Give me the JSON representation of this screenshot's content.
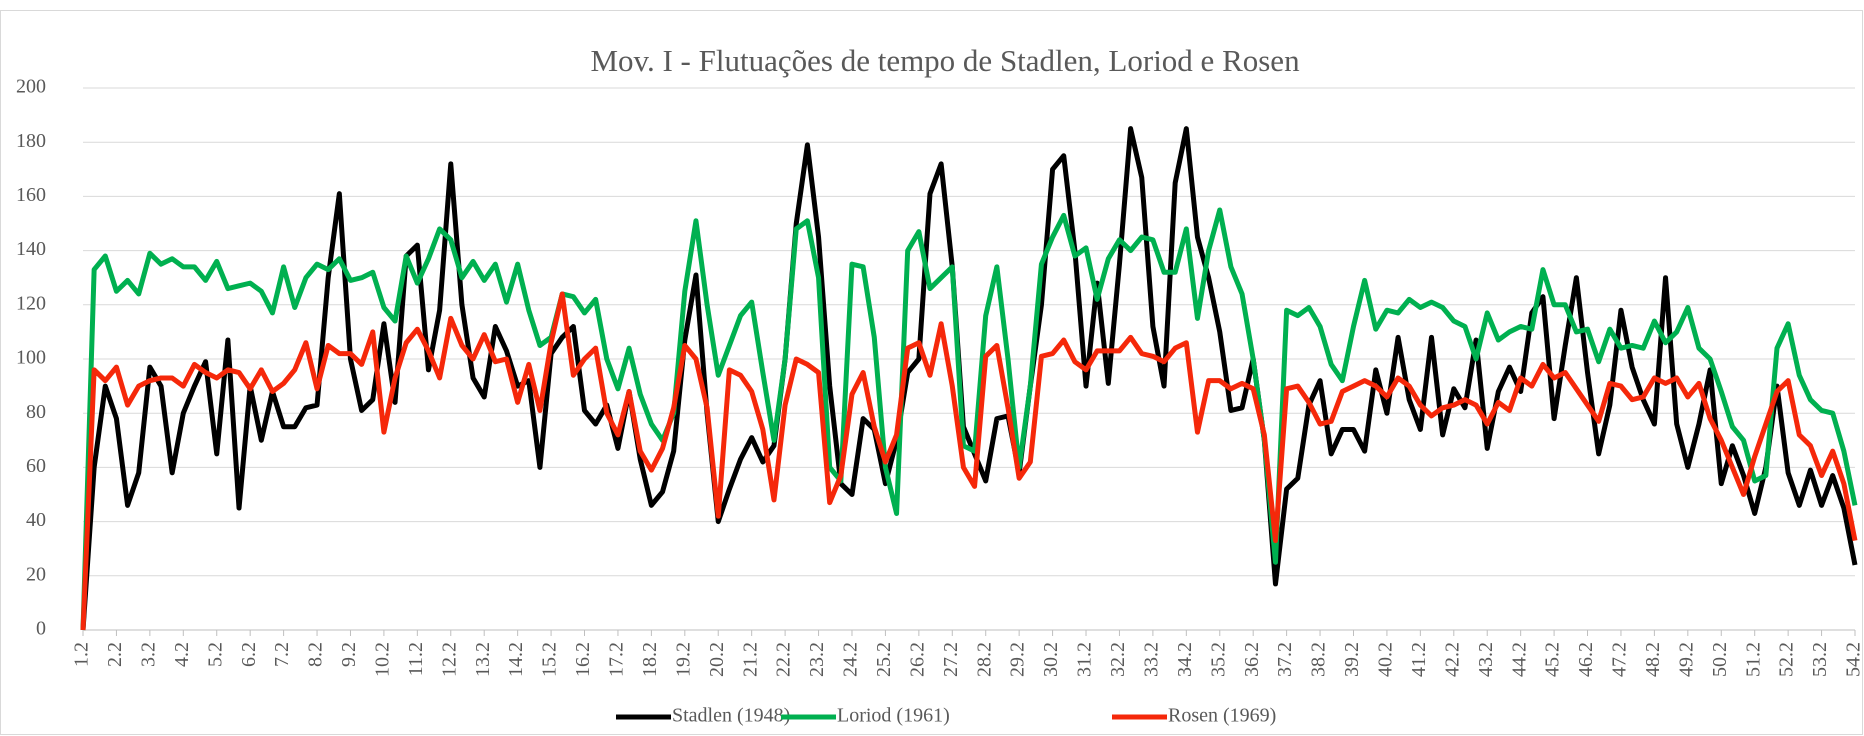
{
  "chart_data": {
    "type": "line",
    "title": "Mov. I - Flutuações de tempo de Stadlen, Loriod e Rosen",
    "categories": [
      "1.2",
      null,
      null,
      "2.2",
      null,
      null,
      "3.2",
      null,
      null,
      "4.2",
      null,
      null,
      "5.2",
      null,
      null,
      "6.2",
      null,
      null,
      "7.2",
      null,
      null,
      "8.2",
      null,
      null,
      "9.2",
      null,
      null,
      "10.2",
      null,
      null,
      "11.2",
      null,
      null,
      "12.2",
      null,
      null,
      "13.2",
      null,
      null,
      "14.2",
      null,
      null,
      "15.2",
      null,
      null,
      "16.2",
      null,
      null,
      "17.2",
      null,
      null,
      "18.2",
      null,
      null,
      "19.2",
      null,
      null,
      "20.2",
      null,
      null,
      "21.2",
      null,
      null,
      "22.2",
      null,
      null,
      "23.2",
      null,
      null,
      "24.2",
      null,
      null,
      "25.2",
      null,
      null,
      "26.2",
      null,
      null,
      "27.2",
      null,
      null,
      "28.2",
      null,
      null,
      "29.2",
      null,
      null,
      "30.2",
      null,
      null,
      "31.2",
      null,
      null,
      "32.2",
      null,
      null,
      "33.2",
      null,
      null,
      "34.2",
      null,
      null,
      "35.2",
      null,
      null,
      "36.2",
      null,
      null,
      "37.2",
      null,
      null,
      "38.2",
      null,
      null,
      "39.2",
      null,
      null,
      "40.2",
      null,
      null,
      "41.2",
      null,
      null,
      "42.2",
      null,
      null,
      "43.2",
      null,
      null,
      "44.2",
      null,
      null,
      "45.2",
      null,
      null,
      "46.2",
      null,
      null,
      "47.2",
      null,
      null,
      "48.2",
      null,
      null,
      "49.2",
      null,
      null,
      "50.2",
      null,
      null,
      "51.2",
      null,
      null,
      "52.2",
      null,
      null,
      "53.2",
      null,
      null,
      "54.2"
    ],
    "series": [
      {
        "name": "Stadlen (1948)",
        "color": "#000000",
        "values": [
          0,
          60,
          90,
          78,
          46,
          58,
          97,
          90,
          58,
          80,
          90,
          99,
          65,
          107,
          45,
          90,
          70,
          88,
          75,
          75,
          82,
          83,
          130,
          161,
          100,
          81,
          85,
          113,
          84,
          138,
          142,
          96,
          118,
          172,
          120,
          93,
          86,
          112,
          103,
          90,
          92,
          60,
          102,
          108,
          112,
          81,
          76,
          83,
          67,
          88,
          63,
          46,
          51,
          66,
          107,
          131,
          80,
          40,
          52,
          63,
          71,
          62,
          68,
          100,
          150,
          179,
          145,
          90,
          54,
          50,
          78,
          74,
          54,
          70,
          95,
          100,
          161,
          172,
          134,
          75,
          65,
          55,
          78,
          79,
          58,
          90,
          120,
          170,
          175,
          140,
          90,
          128,
          91,
          135,
          185,
          167,
          112,
          90,
          165,
          185,
          145,
          130,
          110,
          81,
          82,
          100,
          70,
          17,
          52,
          56,
          83,
          92,
          65,
          74,
          74,
          66,
          96,
          80,
          108,
          85,
          74,
          108,
          72,
          89,
          82,
          107,
          67,
          88,
          97,
          88,
          117,
          123,
          78,
          105,
          130,
          95,
          65,
          83,
          118,
          97,
          85,
          76,
          130,
          76,
          60,
          76,
          96,
          54,
          68,
          57,
          43,
          60,
          90,
          58,
          46,
          59,
          46,
          57,
          45,
          24
        ]
      },
      {
        "name": "Loriod (1961)",
        "color": "#00b050",
        "values": [
          0,
          133,
          138,
          125,
          129,
          124,
          139,
          135,
          137,
          134,
          134,
          129,
          136,
          126,
          127,
          128,
          125,
          117,
          134,
          119,
          130,
          135,
          133,
          137,
          129,
          130,
          132,
          119,
          114,
          138,
          128,
          137,
          148,
          144,
          130,
          136,
          129,
          135,
          121,
          135,
          118,
          105,
          108,
          124,
          123,
          117,
          122,
          100,
          89,
          104,
          87,
          76,
          70,
          80,
          125,
          151,
          120,
          94,
          105,
          116,
          121,
          95,
          70,
          100,
          148,
          151,
          130,
          60,
          55,
          135,
          134,
          108,
          60,
          43,
          140,
          147,
          126,
          130,
          134,
          68,
          66,
          116,
          134,
          100,
          60,
          90,
          135,
          145,
          153,
          138,
          141,
          122,
          137,
          144,
          140,
          145,
          144,
          132,
          132,
          148,
          115,
          140,
          155,
          134,
          124,
          100,
          70,
          25,
          118,
          116,
          119,
          112,
          98,
          92,
          112,
          129,
          111,
          118,
          117,
          122,
          119,
          121,
          119,
          114,
          112,
          100,
          117,
          107,
          110,
          112,
          111,
          133,
          120,
          120,
          110,
          111,
          99,
          111,
          104,
          105,
          104,
          114,
          106,
          110,
          119,
          104,
          100,
          88,
          75,
          70,
          55,
          57,
          104,
          113,
          94,
          85,
          81,
          80,
          66,
          46
        ]
      },
      {
        "name": "Rosen (1969)",
        "color": "#f5280a",
        "values": [
          0,
          96,
          92,
          97,
          83,
          90,
          92,
          93,
          93,
          90,
          98,
          95,
          93,
          96,
          95,
          89,
          96,
          88,
          91,
          96,
          106,
          89,
          105,
          102,
          102,
          98,
          110,
          73,
          93,
          106,
          111,
          103,
          93,
          115,
          105,
          100,
          109,
          99,
          100,
          84,
          98,
          81,
          106,
          124,
          94,
          100,
          104,
          80,
          72,
          88,
          66,
          59,
          67,
          82,
          105,
          100,
          82,
          42,
          96,
          94,
          88,
          74,
          48,
          83,
          100,
          98,
          95,
          47,
          57,
          87,
          95,
          75,
          62,
          72,
          104,
          106,
          94,
          113,
          90,
          60,
          53,
          101,
          105,
          82,
          56,
          62,
          101,
          102,
          107,
          99,
          96,
          103,
          103,
          103,
          108,
          102,
          101,
          99,
          104,
          106,
          73,
          92,
          92,
          89,
          91,
          89,
          72,
          33,
          89,
          90,
          84,
          76,
          77,
          88,
          90,
          92,
          90,
          86,
          93,
          90,
          83,
          79,
          82,
          83,
          85,
          83,
          76,
          84,
          81,
          93,
          90,
          98,
          93,
          95,
          89,
          83,
          77,
          91,
          90,
          85,
          86,
          93,
          91,
          93,
          86,
          91,
          78,
          70,
          60,
          50,
          64,
          76,
          88,
          92,
          72,
          68,
          57,
          66,
          54,
          33
        ]
      }
    ],
    "ylim": [
      0,
      200
    ],
    "yticks": [
      0,
      20,
      40,
      60,
      80,
      100,
      120,
      140,
      160,
      180,
      200
    ],
    "grid": true,
    "legend": "bottom"
  }
}
